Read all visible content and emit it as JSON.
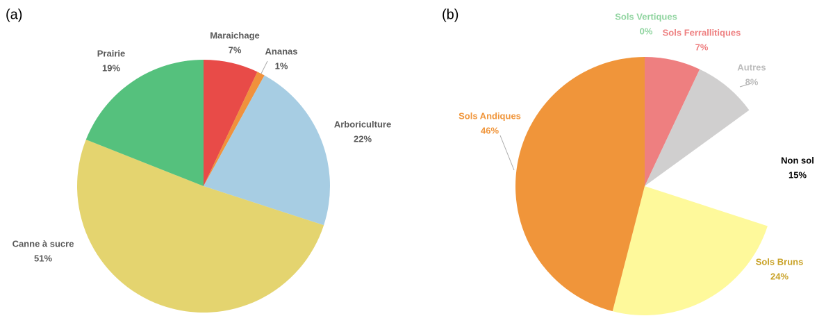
{
  "chart_data": [
    {
      "type": "pie",
      "title": "(a)",
      "categories": [
        "Maraichage",
        "Ananas",
        "Arboriculture",
        "Canne à sucre",
        "Prairie"
      ],
      "values": [
        7,
        1,
        22,
        51,
        19
      ],
      "value_labels": [
        "7%",
        "1%",
        "22%",
        "51%",
        "19%"
      ],
      "colors": [
        "#e84b48",
        "#f0913c",
        "#a7cde3",
        "#e4d46f",
        "#55c17d"
      ],
      "label_colors": [
        "#595959",
        "#595959",
        "#595959",
        "#595959",
        "#595959"
      ]
    },
    {
      "type": "pie",
      "title": "(b)",
      "categories": [
        "Sols Vertiques",
        "Sols Ferrallitiques",
        "Autres",
        "Non sol",
        "Sols Bruns",
        "Sols Andiques"
      ],
      "values": [
        0,
        7,
        8,
        15,
        24,
        46
      ],
      "value_labels": [
        "0%",
        "7%",
        "8%",
        "15%",
        "24%",
        "46%"
      ],
      "colors": [
        "#8fd49f",
        "#ee7f80",
        "#d0cfcf",
        "#ffffff",
        "#fef99b",
        "#f0953a"
      ],
      "label_colors": [
        "#8fd49f",
        "#ee7f80",
        "#bcbcbc",
        "#000000",
        "#c9a227",
        "#f0953a"
      ]
    }
  ]
}
